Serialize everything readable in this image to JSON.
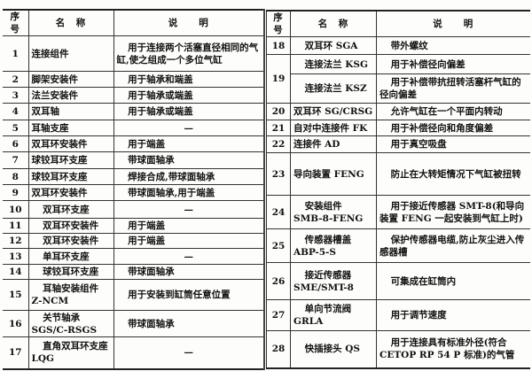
{
  "headers": {
    "seq": "序号",
    "name": "名　称",
    "desc": "说　　明"
  },
  "left_rows": [
    {
      "seq": "1",
      "name": "连接组件",
      "desc": "用于连接两个活塞直径相同的气缸,使之组成一个多位气缸"
    },
    {
      "seq": "2",
      "name": "脚架安装件",
      "desc": "用于轴承和端盖"
    },
    {
      "seq": "3",
      "name": "法兰安装件",
      "desc": "用于轴承或端盖"
    },
    {
      "seq": "4",
      "name": "双耳轴",
      "desc": "用于轴承或端盖"
    },
    {
      "seq": "5",
      "name": "耳轴支座",
      "desc": "—"
    },
    {
      "seq": "6",
      "name": "双耳环安装件",
      "desc": "用于端盖"
    },
    {
      "seq": "7",
      "name": "球铰耳环支座",
      "desc": "带球面轴承"
    },
    {
      "seq": "8",
      "name": "球铰耳环支座",
      "desc": "焊接合成,带球面轴承"
    },
    {
      "seq": "9",
      "name": "双耳环安装件",
      "desc": "带球面轴承,用于端盖"
    },
    {
      "seq": "10",
      "name": "双耳环支座",
      "desc": "—"
    },
    {
      "seq": "11",
      "name": "双耳环安装件",
      "desc": "用于端盖"
    },
    {
      "seq": "12",
      "name": "双耳环安装件",
      "desc": "用于端盖"
    },
    {
      "seq": "13",
      "name": "单耳环支座",
      "desc": "—"
    },
    {
      "seq": "14",
      "name": "球铰耳环支座",
      "desc": "带球面轴承"
    },
    {
      "seq": "15",
      "name": "耳轴安装组件 Z-NCM",
      "desc": "用于安装到缸筒任意位置"
    },
    {
      "seq": "16",
      "name": "关节轴承 SGS/C-RSGS",
      "desc": "带球面轴承"
    },
    {
      "seq": "17",
      "name": "直角双耳环支座 LQG",
      "desc": "—"
    }
  ],
  "right_rows": [
    {
      "seq": "18",
      "name": "双耳环 SGA",
      "desc": "带外螺纹"
    },
    {
      "seq": "19",
      "name": "连接法兰 KSG",
      "desc": "用于补偿径向偏差"
    },
    {
      "seq": "",
      "name": "连接法兰 KSZ",
      "desc": "用于补偿带抗扭转活塞杆气缸的径向偏差"
    },
    {
      "seq": "20",
      "name": "双耳环 SG/CRSG",
      "desc": "允许气缸在一个平面内转动"
    },
    {
      "seq": "21",
      "name": "自对中连接件 FK",
      "desc": "用于补偿径向和角度偏差"
    },
    {
      "seq": "22",
      "name": "连接件 AD",
      "desc": "用于真空吸盘"
    },
    {
      "seq": "23",
      "name": "导向装置 FENG",
      "desc": "防止在大转矩情况下气缸被扭转"
    },
    {
      "seq": "24",
      "name": "安装组件 SMB-8-FENG",
      "desc": "用于接近传感器 SMT-8(和导向装置 FENG 一起安装到气缸上时)"
    },
    {
      "seq": "25",
      "name": "传感器槽盖 ABP-5-S",
      "desc": "保护传感器电缆,防止灰尘进入传感器槽"
    },
    {
      "seq": "26",
      "name": "接近传感器 SME/SMT-8",
      "desc": "可集成在缸筒内"
    },
    {
      "seq": "27",
      "name": "单向节流阀 GRLA",
      "desc": "用于调节速度"
    },
    {
      "seq": "28",
      "name": "快插接头 QS",
      "desc": "用于连接具有标准外径(符合 CETOP RP 54 P 标准)的气管"
    }
  ]
}
